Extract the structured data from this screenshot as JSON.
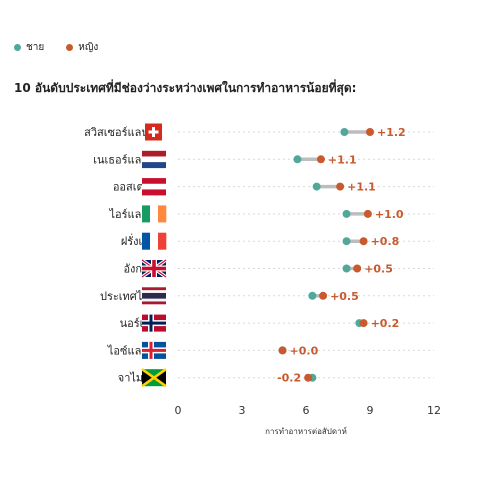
{
  "legend": {
    "male_label": "ชาย",
    "female_label": "หญิง"
  },
  "colors": {
    "male": "#4fa89a",
    "female": "#c85a2e",
    "connector": "#bdbdbd",
    "gridline": "#d9d9d9"
  },
  "title": "10 อันดับประเทศที่มีช่องว่างระหว่างเพศในการทำอาหารน้อยที่สุด:",
  "chart_data": {
    "type": "dot-plot",
    "title": "10 อันดับประเทศที่มีช่องว่างระหว่างเพศในการทำอาหารน้อยที่สุด:",
    "xlabel": "การทำอาหารต่อสัปดาห์",
    "xlim": [
      0,
      12
    ],
    "xticks": [
      "0",
      "3",
      "6",
      "9",
      "12"
    ],
    "legend_position": "top-left",
    "series": [
      {
        "name": "ชาย",
        "color": "#4fa89a"
      },
      {
        "name": "หญิง",
        "color": "#c85a2e"
      }
    ],
    "countries": [
      {
        "name": "สวิสเซอร์แลนด์",
        "flag": "switzerland-flag",
        "male": 7.8,
        "female": 9.0,
        "gap": "+1.2"
      },
      {
        "name": "เนเธอร์แลนด์",
        "flag": "netherlands-flag",
        "male": 5.6,
        "female": 6.7,
        "gap": "+1.1"
      },
      {
        "name": "ออสเตรีย",
        "flag": "austria-flag",
        "male": 6.5,
        "female": 7.6,
        "gap": "+1.1"
      },
      {
        "name": "ไอร์แลนด์",
        "flag": "ireland-flag",
        "male": 7.9,
        "female": 8.9,
        "gap": "+1.0"
      },
      {
        "name": "ฝรั่งเศส",
        "flag": "france-flag",
        "male": 7.9,
        "female": 8.7,
        "gap": "+0.8"
      },
      {
        "name": "อังกฤษ",
        "flag": "uk-flag",
        "male": 7.9,
        "female": 8.4,
        "gap": "+0.5"
      },
      {
        "name": "ประเทศไทย",
        "flag": "thailand-flag",
        "male": 6.3,
        "female": 6.8,
        "gap": "+0.5"
      },
      {
        "name": "นอร์เวย์",
        "flag": "norway-flag",
        "male": 8.5,
        "female": 8.7,
        "gap": "+0.2"
      },
      {
        "name": "ไอซ์แลนด์",
        "flag": "iceland-flag",
        "male": 4.9,
        "female": 4.9,
        "gap": "+0.0"
      },
      {
        "name": "จาไมก้า",
        "flag": "jamaica-flag",
        "male": 6.3,
        "female": 6.1,
        "gap": "-0.2"
      }
    ]
  }
}
